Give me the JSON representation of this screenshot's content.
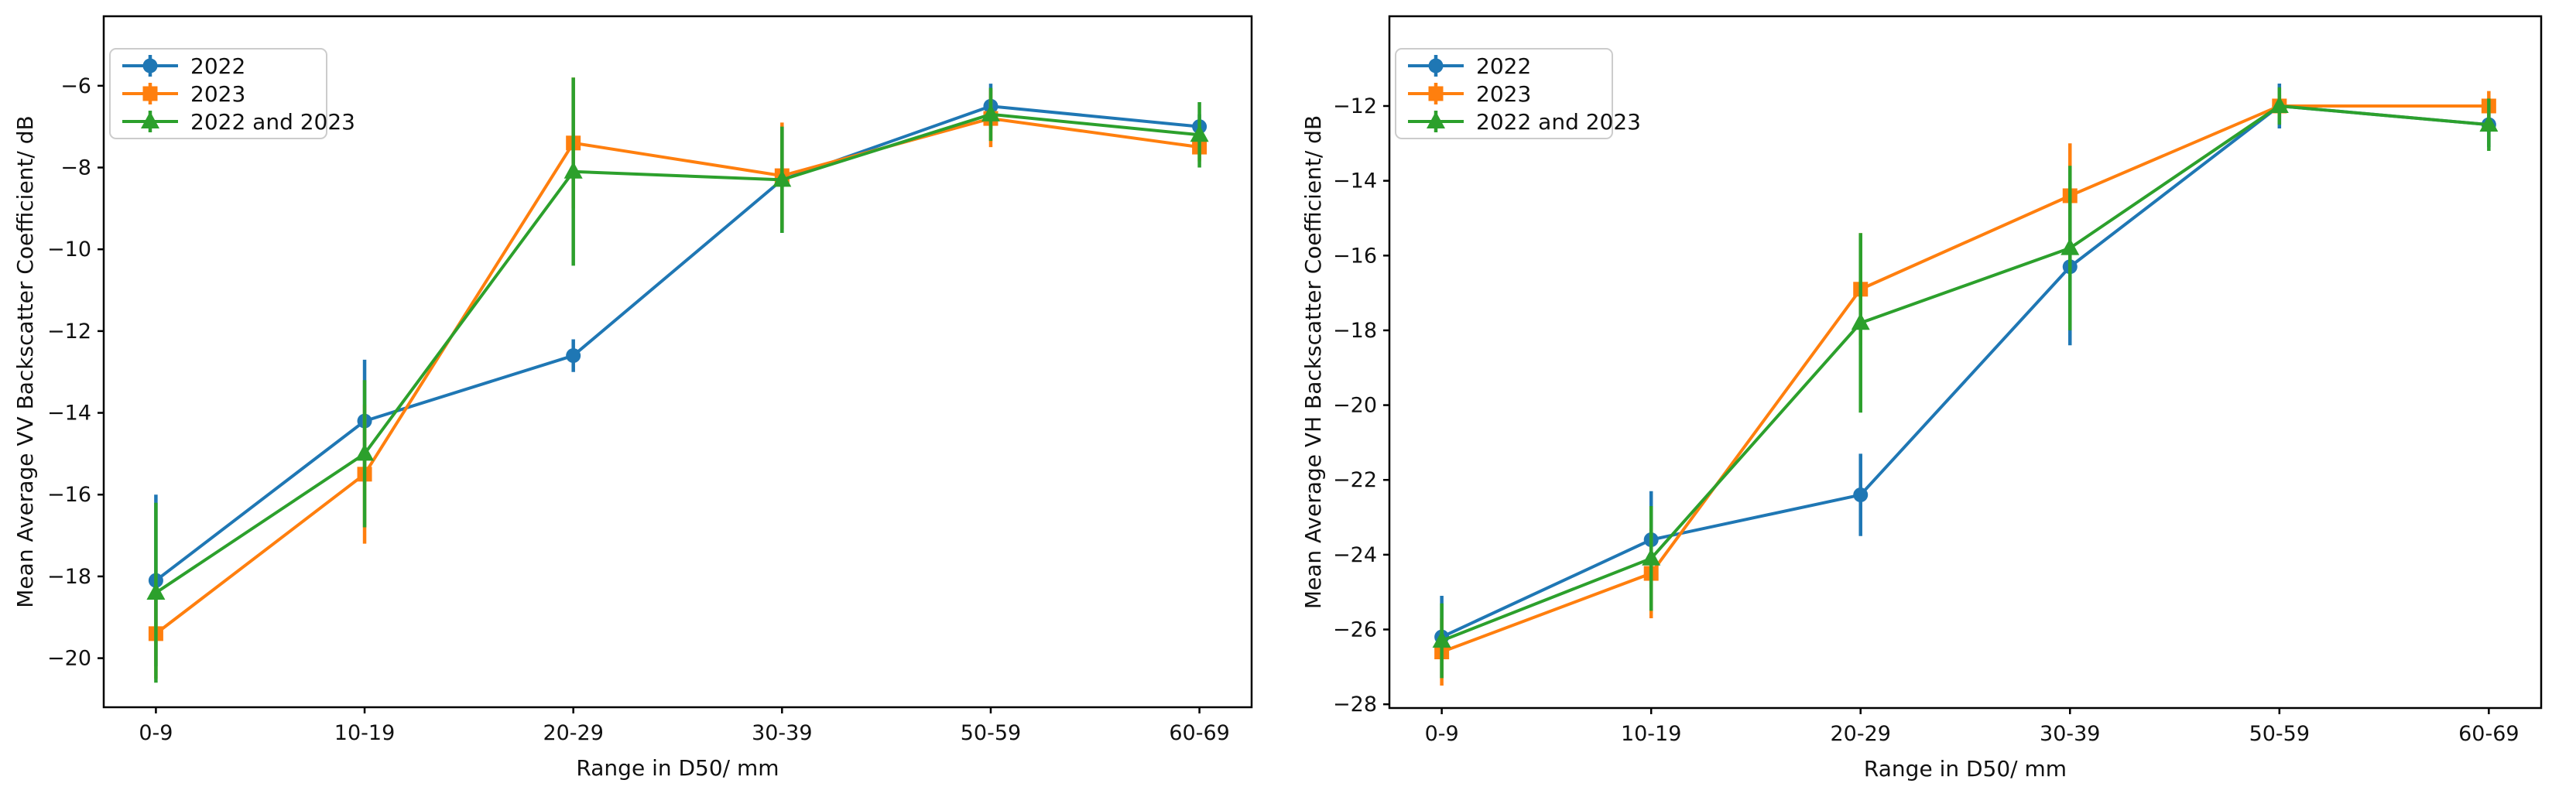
{
  "figure": {
    "background": "#ffffff",
    "text_color": "#111111",
    "spine_color": "#000000"
  },
  "chart_data": [
    {
      "type": "line",
      "title": "",
      "xlabel": "Range in D50/ mm",
      "ylabel": "Mean Average VV Backscatter Coefficient/ dB",
      "categories": [
        "0-9",
        "10-19",
        "20-29",
        "30-39",
        "50-59",
        "60-69"
      ],
      "yticks": [
        -6,
        -8,
        -10,
        -12,
        -14,
        -16,
        -18,
        -20
      ],
      "ylim": [
        -21.2,
        -4.3
      ],
      "grid": false,
      "legend_position": "upper-left",
      "legend_labels": [
        "2022",
        "2023",
        "2022 and 2023"
      ],
      "series": [
        {
          "name": "2022",
          "color": "#1f77b4",
          "marker": "circle",
          "values": [
            -18.1,
            -14.2,
            -12.6,
            -8.3,
            -6.5,
            -7.0
          ],
          "yerr": [
            2.1,
            1.5,
            0.4,
            1.3,
            0.55,
            0.3
          ]
        },
        {
          "name": "2023",
          "color": "#ff7f0e",
          "marker": "square",
          "values": [
            -19.4,
            -15.5,
            -7.4,
            -8.2,
            -6.8,
            -7.5
          ],
          "yerr": [
            1.1,
            1.7,
            1.6,
            1.3,
            0.7,
            0.35
          ]
        },
        {
          "name": "2022 and 2023",
          "color": "#2ca02c",
          "marker": "triangle",
          "values": [
            -18.4,
            -15.0,
            -8.1,
            -8.3,
            -6.7,
            -7.2
          ],
          "yerr": [
            2.2,
            1.8,
            2.3,
            1.3,
            0.65,
            0.8
          ]
        }
      ]
    },
    {
      "type": "line",
      "title": "",
      "xlabel": "Range in D50/ mm",
      "ylabel": "Mean Average VH Backscatter Coefficient/ dB",
      "categories": [
        "0-9",
        "10-19",
        "20-29",
        "30-39",
        "50-59",
        "60-69"
      ],
      "yticks": [
        -12,
        -14,
        -16,
        -18,
        -20,
        -22,
        -24,
        -26,
        -28
      ],
      "ylim": [
        -28.1,
        -9.6
      ],
      "grid": false,
      "legend_position": "upper-left",
      "legend_labels": [
        "2022",
        "2023",
        "2022 and 2023"
      ],
      "series": [
        {
          "name": "2022",
          "color": "#1f77b4",
          "marker": "circle",
          "values": [
            -26.2,
            -23.6,
            -22.4,
            -16.3,
            -12.0,
            -12.5
          ],
          "yerr": [
            1.1,
            1.3,
            1.1,
            2.1,
            0.6,
            0.6
          ]
        },
        {
          "name": "2023",
          "color": "#ff7f0e",
          "marker": "square",
          "values": [
            -26.6,
            -24.5,
            -16.9,
            -14.4,
            -12.0,
            -12.0
          ],
          "yerr": [
            0.9,
            1.2,
            1.5,
            1.4,
            0.3,
            0.4
          ]
        },
        {
          "name": "2022 and 2023",
          "color": "#2ca02c",
          "marker": "triangle",
          "values": [
            -26.3,
            -24.1,
            -17.8,
            -15.8,
            -12.0,
            -12.5
          ],
          "yerr": [
            1.0,
            1.4,
            2.4,
            2.2,
            0.5,
            0.7
          ]
        }
      ]
    }
  ]
}
